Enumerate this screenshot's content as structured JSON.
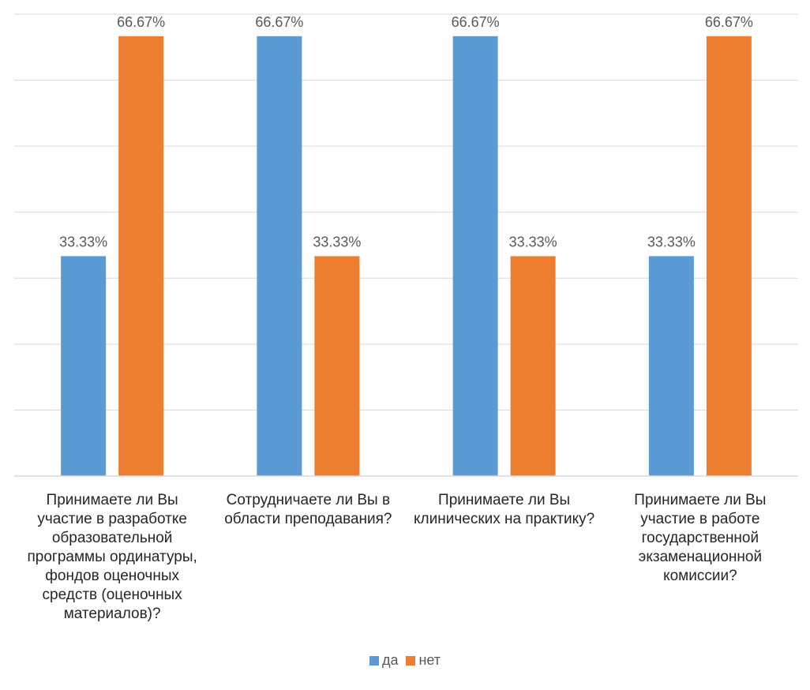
{
  "chart_data": {
    "type": "bar",
    "categories": [
      "Принимаете ли Вы участие в разработке образовательной программы ординатуры, фондов оценочных средств (оценочных материалов)?",
      "Сотрудничаете ли Вы в области преподавания?",
      "Принимаете ли Вы клинических на практику?",
      "Принимаете ли Вы участие в работе государственной экзаменационной комиссии?"
    ],
    "series": [
      {
        "name": "да",
        "values": [
          33.33,
          66.67,
          66.67,
          33.33
        ],
        "labels": [
          "33.33%",
          "66.67%",
          "66.67%",
          "33.33%"
        ],
        "color": "#5B9BD5"
      },
      {
        "name": "нет",
        "values": [
          66.67,
          33.33,
          33.33,
          66.67
        ],
        "labels": [
          "66.67%",
          "33.33%",
          "33.33%",
          "66.67%"
        ],
        "color": "#ED7D31"
      }
    ],
    "ylim": [
      0,
      70
    ],
    "grid": true,
    "legend_position": "bottom"
  }
}
